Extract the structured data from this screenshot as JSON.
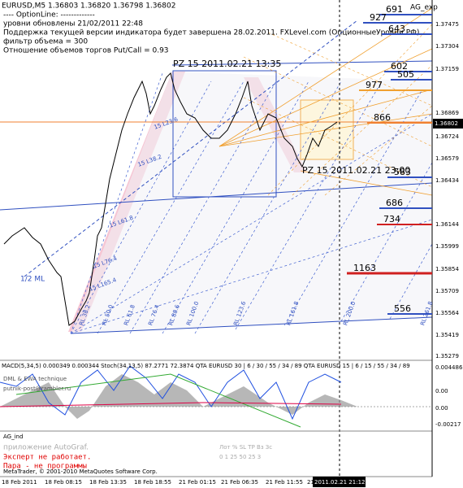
{
  "header": {
    "lines": [
      "EURUSD,M5  1.36803 1.36820 1.36798 1.36802",
      "---- OptionLine: -------------",
      "уровни обновлены 21/02/2011   22:48",
      "Поддержка текущей версии индикатора будет завершена 28.02.2011. FXLevel.com (ОпционныеУровни.РФ)",
      "фильтр объема = 300",
      "Отношение объемов торгов Put/Call = 0.93"
    ],
    "expert": "AG_exp"
  },
  "price_axis": {
    "labels": [
      "1.37475",
      "1.37304",
      "1.37159",
      "1.36869",
      "1.36724",
      "1.36579",
      "1.36434",
      "1.36144",
      "1.35999",
      "1.35854",
      "1.35709",
      "1.35564",
      "1.35419",
      "1.35279"
    ],
    "current": "1.36802"
  },
  "levels": [
    "691",
    "927",
    "643",
    "602",
    "505",
    "977",
    "866",
    "583",
    "686",
    "734",
    "1163",
    "556"
  ],
  "annotations": {
    "pz_high": "PZ 15  2011.02.21 13:35",
    "pz_low": "PZ 15  2011.02.21 23:00",
    "median": "1/2 ML",
    "fan_labels": [
      "15 L23.6",
      "15 L38.2",
      "15 L61.8",
      "15 L76.4",
      "15 L165.4"
    ],
    "rl_labels": [
      "RL 38.2",
      "RL 50.0",
      "RL 61.8",
      "RL 76.4",
      "RL 88.6",
      "RL 100.0",
      "RL 123.6",
      "RL 161.8",
      "RL 200.0",
      "RL 261.8"
    ]
  },
  "macd_panel": {
    "title": "MACD(5,34,5) 0.000349 0.000344  Stoch(34,13,5) 87.2771 72.3874  QTA EURUSD 30 | 6 / 30 / 55 / 34 / 89   QTA EURUSD 15 | 6 / 15 / 55 / 34 / 89",
    "overlay": [
      "DML & EWA technique",
      "putnik-post@rambler.ru"
    ],
    "scale": [
      "0.004486",
      "0.00",
      "0.00",
      "-0.00217"
    ]
  },
  "ag_panel": {
    "title": "AG_ind",
    "app": "приложение AutoGraf.",
    "warning": [
      "Эксперт не работает.",
      "Пара - не программы"
    ],
    "table_header": "Лот   %   SL   TP   Вз   Зс",
    "table_row": "0    1    25   50   25   3",
    "copyright": "MetaTrader, © 2001-2010 MetaQuotes Software Corp."
  },
  "time_axis": {
    "labels": [
      "18 Feb 2011",
      "18 Feb 08:15",
      "18 Feb 13:35",
      "18 Feb 18:55",
      "21 Feb 01:15",
      "21 Feb 06:35",
      "21 Feb 11:55",
      "21 Feb 17:15"
    ],
    "cursor": "2011.02.21 21:12"
  }
}
